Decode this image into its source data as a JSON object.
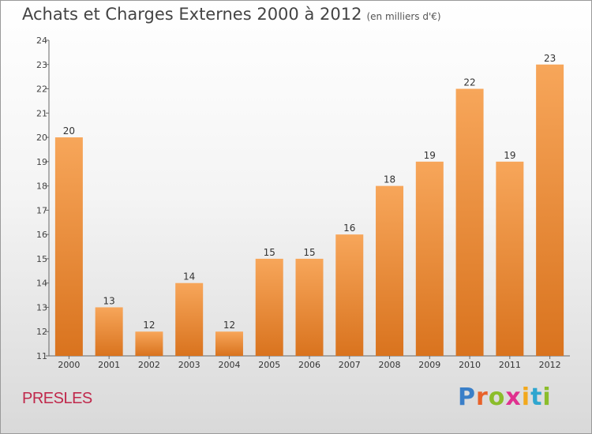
{
  "header": {
    "title": "Achats et Charges Externes 2000 à 2012",
    "unit": "(en milliers d'€)"
  },
  "commune": "PRESLES",
  "logo": {
    "text": "Proxiti",
    "letter_colors": [
      "#3a7fc8",
      "#e8622a",
      "#8bbd2b",
      "#e0318f",
      "#f2a81d",
      "#2fa6cf",
      "#8bbd2b"
    ]
  },
  "chart_data": {
    "type": "bar",
    "title": "Achats et Charges Externes 2000 à 2012",
    "subtitle": "(en milliers d'€)",
    "categories": [
      "2000",
      "2001",
      "2002",
      "2003",
      "2004",
      "2005",
      "2006",
      "2007",
      "2008",
      "2009",
      "2010",
      "2011",
      "2012"
    ],
    "values": [
      20,
      13,
      12,
      14,
      12,
      15,
      15,
      16,
      18,
      19,
      22,
      19,
      23
    ],
    "ylim": [
      11,
      24
    ],
    "yticks": [
      11,
      12,
      13,
      14,
      15,
      16,
      17,
      18,
      19,
      20,
      21,
      22,
      23,
      24
    ],
    "grid": false,
    "bar_color_top": "#f7a65a",
    "bar_color_bottom": "#d9731e"
  }
}
